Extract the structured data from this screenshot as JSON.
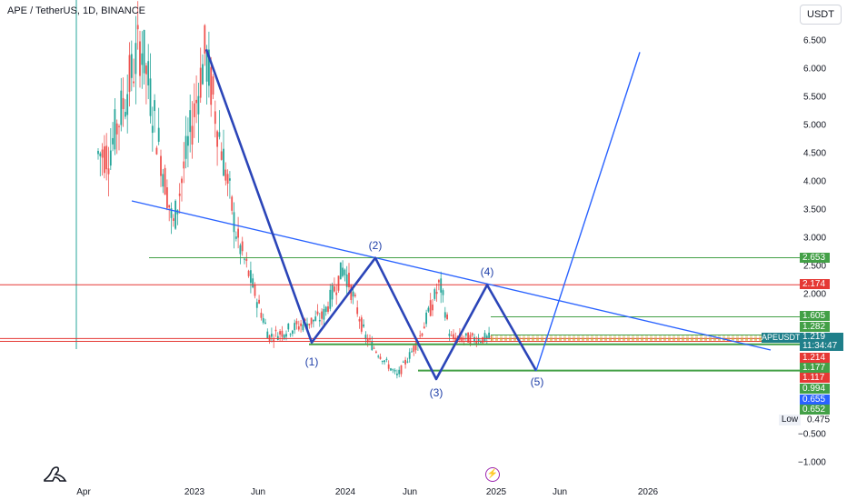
{
  "header": {
    "title": "APE / TetherUS, 1D, BINANCE",
    "currency": "USDT"
  },
  "price_ticks": [
    "6.500",
    "6.000",
    "5.500",
    "5.000",
    "4.500",
    "4.000",
    "3.500",
    "3.000",
    "2.500",
    "2.000",
    "−0.500",
    "−1.000"
  ],
  "time_ticks": [
    "Apr",
    "2023",
    "Jun",
    "2024",
    "Jun",
    "2025",
    "Jun",
    "2026"
  ],
  "price_tags": [
    {
      "value": "2.653",
      "color": "#43a047"
    },
    {
      "value": "2.174",
      "color": "#e53935"
    },
    {
      "value": "1.605",
      "color": "#43a047"
    },
    {
      "value": "1.282",
      "color": "#43a047"
    },
    {
      "value": "1.214",
      "color": "#e53935"
    },
    {
      "value": "1.177",
      "color": "#43a047"
    },
    {
      "value": "1.117",
      "color": "#e53935"
    },
    {
      "value": "0.994",
      "color": "#43a047"
    },
    {
      "value": "0.655",
      "color": "#2962ff"
    },
    {
      "value": "0.652",
      "color": "#43a047"
    }
  ],
  "current": {
    "symbol": "APEUSDT",
    "price": "1.219",
    "countdown": "11:34:47"
  },
  "low": {
    "label": "Low",
    "value": "0.475"
  },
  "pattern_labels": [
    "(1)",
    "(2)",
    "(3)",
    "(4)",
    "(5)"
  ],
  "colors": {
    "up": "#26a69a",
    "down": "#ef5350",
    "pattern": "#2b45b8",
    "trend": "#2962ff",
    "support": "#43a047",
    "resistance": "#e53935"
  },
  "chart_data": {
    "type": "candlestick",
    "title": "APE / TetherUS, 1D, BINANCE",
    "price_axis_ticks": [
      6.5,
      6.0,
      5.5,
      5.0,
      4.5,
      4.0,
      3.5,
      3.0,
      2.5,
      2.0,
      -0.5,
      -1.0
    ],
    "time_axis_ticks": [
      "Apr",
      "2023",
      "Jun",
      "2024",
      "Jun",
      "2025",
      "Jun",
      "2026"
    ],
    "price_series_approx": [
      {
        "date": "2022-05",
        "price": 4.5
      },
      {
        "date": "2022-08",
        "price": 6.5
      },
      {
        "date": "2022-11",
        "price": 3.2
      },
      {
        "date": "2023-02",
        "price": 6.3
      },
      {
        "date": "2023-05",
        "price": 3.0
      },
      {
        "date": "2023-08",
        "price": 1.25
      },
      {
        "date": "2024-01",
        "price": 1.6
      },
      {
        "date": "2024-03",
        "price": 2.5
      },
      {
        "date": "2024-05",
        "price": 1.25
      },
      {
        "date": "2024-08",
        "price": 0.55
      },
      {
        "date": "2024-10",
        "price": 1.2
      },
      {
        "date": "2024-12",
        "price": 2.2
      },
      {
        "date": "2025-01",
        "price": 1.219
      }
    ],
    "horizontal_levels": [
      2.653,
      2.174,
      1.605,
      1.282,
      1.214,
      1.177,
      1.117,
      0.994,
      0.655,
      0.652
    ],
    "wave_points": [
      {
        "label": "",
        "price": 6.35
      },
      {
        "label": "(1)",
        "price": 1.15
      },
      {
        "label": "(2)",
        "price": 2.65
      },
      {
        "label": "(3)",
        "price": 0.5
      },
      {
        "label": "(4)",
        "price": 2.17
      },
      {
        "label": "(5)",
        "price": 0.65
      }
    ],
    "projection_target": 6.3,
    "current_price": 1.219,
    "low": 0.475,
    "ylim": [
      -1.1,
      7.3
    ]
  }
}
